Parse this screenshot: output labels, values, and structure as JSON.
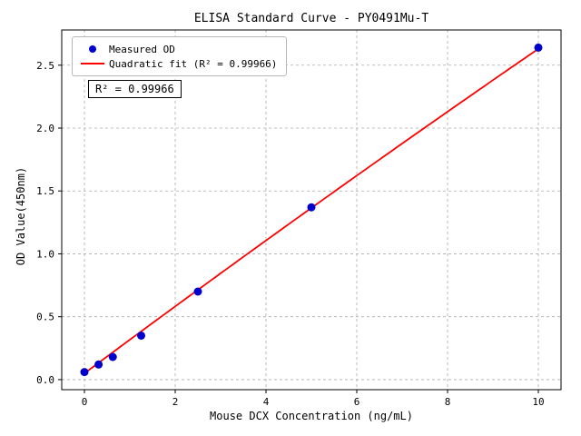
{
  "chart_data": {
    "type": "scatter",
    "title": "ELISA Standard Curve - PY0491Mu-T",
    "xlabel": "Mouse DCX Concentration (ng/mL)",
    "ylabel": "OD Value(450nm)",
    "xlim": [
      -0.5,
      10.5
    ],
    "ylim": [
      -0.08,
      2.78
    ],
    "xticks": [
      0,
      2,
      4,
      6,
      8,
      10
    ],
    "yticks": [
      0.0,
      0.5,
      1.0,
      1.5,
      2.0,
      2.5
    ],
    "grid": true,
    "legend_position": "upper-left",
    "annotation": "R² = 0.99966",
    "colors": {
      "scatter": "#0000CD",
      "fit_line": "#FF0000",
      "grid": "#ababab",
      "axes": "#000000"
    },
    "series": [
      {
        "name": "Measured OD",
        "type": "scatter",
        "color": "#0000CD",
        "x": [
          0,
          0.312,
          0.625,
          1.25,
          2.5,
          5,
          10
        ],
        "y": [
          0.06,
          0.12,
          0.18,
          0.35,
          0.7,
          1.37,
          2.64
        ]
      },
      {
        "name": "Quadratic fit (R² = 0.99966)",
        "type": "line",
        "color": "#FF0000",
        "fit": {
          "kind": "quadratic",
          "a": -0.001,
          "b": 0.268,
          "c": 0.05,
          "x_range": [
            0,
            10
          ]
        }
      }
    ]
  }
}
